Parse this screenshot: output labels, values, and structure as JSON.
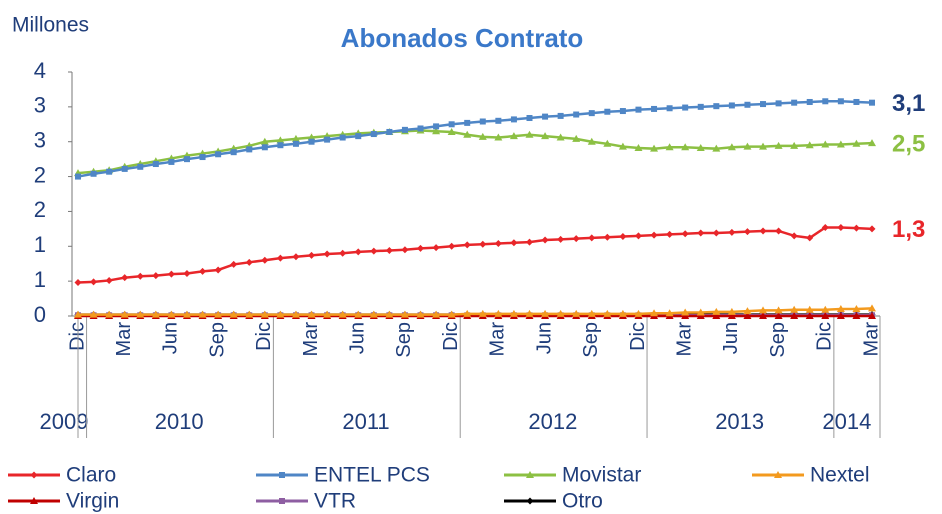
{
  "chart_data": {
    "type": "line",
    "title": "Abonados Contrato",
    "y_axis_label": "Millones",
    "categories": [
      "Dic",
      null,
      null,
      "Mar",
      null,
      null,
      "Jun",
      null,
      null,
      "Sep",
      null,
      null,
      "Dic",
      null,
      null,
      "Mar",
      null,
      null,
      "Jun",
      null,
      null,
      "Sep",
      null,
      null,
      "Dic",
      null,
      null,
      "Mar",
      null,
      null,
      "Jun",
      null,
      null,
      "Sep",
      null,
      null,
      "Dic",
      null,
      null,
      "Mar",
      null,
      null,
      "Jun",
      null,
      null,
      "Sep",
      null,
      null,
      "Dic",
      null,
      null,
      "Mar"
    ],
    "years": [
      "2009",
      "2010",
      "2011",
      "2012",
      "2013",
      "2014"
    ],
    "ylim": [
      0,
      3.5
    ],
    "yticks": [
      0,
      {
        "value": 0.5,
        "label": "1"
      },
      1,
      {
        "value": 1.5,
        "label": "2"
      },
      2,
      {
        "value": 2.5,
        "label": "3"
      },
      3,
      {
        "value": 3.5,
        "label": "4"
      }
    ],
    "series": [
      {
        "name": "Claro",
        "color": "#e8262a",
        "marker": "diamond",
        "end_label": "1,3",
        "values": [
          0.48,
          0.49,
          0.51,
          0.55,
          0.57,
          0.58,
          0.6,
          0.61,
          0.64,
          0.66,
          0.74,
          0.77,
          0.8,
          0.83,
          0.85,
          0.87,
          0.89,
          0.9,
          0.92,
          0.93,
          0.94,
          0.95,
          0.97,
          0.98,
          1.0,
          1.02,
          1.03,
          1.04,
          1.05,
          1.06,
          1.09,
          1.1,
          1.11,
          1.12,
          1.13,
          1.14,
          1.15,
          1.16,
          1.17,
          1.18,
          1.19,
          1.19,
          1.2,
          1.21,
          1.22,
          1.22,
          1.15,
          1.12,
          1.27,
          1.27,
          1.26,
          1.25
        ]
      },
      {
        "name": "ENTEL PCS",
        "color": "#4f86c6",
        "marker": "square",
        "end_label": "3,1",
        "values": [
          2.0,
          2.04,
          2.07,
          2.11,
          2.14,
          2.18,
          2.21,
          2.25,
          2.28,
          2.32,
          2.35,
          2.39,
          2.42,
          2.45,
          2.47,
          2.5,
          2.53,
          2.56,
          2.58,
          2.61,
          2.64,
          2.67,
          2.69,
          2.72,
          2.75,
          2.77,
          2.79,
          2.8,
          2.82,
          2.84,
          2.86,
          2.87,
          2.89,
          2.91,
          2.93,
          2.94,
          2.96,
          2.97,
          2.98,
          2.99,
          3.0,
          3.01,
          3.02,
          3.03,
          3.04,
          3.05,
          3.06,
          3.07,
          3.08,
          3.08,
          3.07,
          3.06
        ]
      },
      {
        "name": "Movistar",
        "color": "#8cc043",
        "marker": "triangle",
        "end_label": "2,5",
        "values": [
          2.05,
          2.07,
          2.09,
          2.14,
          2.18,
          2.22,
          2.26,
          2.3,
          2.33,
          2.36,
          2.4,
          2.44,
          2.5,
          2.52,
          2.54,
          2.56,
          2.58,
          2.6,
          2.62,
          2.63,
          2.64,
          2.65,
          2.66,
          2.65,
          2.64,
          2.6,
          2.57,
          2.56,
          2.58,
          2.6,
          2.58,
          2.56,
          2.54,
          2.5,
          2.47,
          2.43,
          2.41,
          2.4,
          2.42,
          2.42,
          2.41,
          2.4,
          2.42,
          2.43,
          2.43,
          2.44,
          2.44,
          2.45,
          2.46,
          2.46,
          2.47,
          2.48
        ]
      },
      {
        "name": "Nextel",
        "color": "#f39a1e",
        "marker": "triangle",
        "values": [
          0.02,
          0.02,
          0.02,
          0.02,
          0.02,
          0.02,
          0.02,
          0.02,
          0.02,
          0.02,
          0.02,
          0.02,
          0.02,
          0.02,
          0.02,
          0.02,
          0.02,
          0.02,
          0.02,
          0.02,
          0.02,
          0.02,
          0.02,
          0.02,
          0.02,
          0.03,
          0.03,
          0.03,
          0.03,
          0.03,
          0.03,
          0.03,
          0.03,
          0.03,
          0.03,
          0.03,
          0.03,
          0.04,
          0.04,
          0.05,
          0.05,
          0.06,
          0.06,
          0.07,
          0.08,
          0.08,
          0.09,
          0.09,
          0.09,
          0.1,
          0.1,
          0.11
        ]
      },
      {
        "name": "Virgin",
        "color": "#c00000",
        "marker": "triangle",
        "values": [
          0,
          0,
          0,
          0,
          0,
          0,
          0,
          0,
          0,
          0,
          0,
          0,
          0,
          0,
          0,
          0,
          0,
          0,
          0,
          0,
          0,
          0,
          0,
          0,
          0,
          0,
          0,
          0,
          0,
          0,
          0,
          0,
          0,
          0,
          0,
          0,
          0,
          0,
          0,
          0,
          0,
          0,
          0,
          0,
          0,
          0,
          0,
          0,
          0,
          0,
          0,
          0
        ]
      },
      {
        "name": "VTR",
        "color": "#8e5ea2",
        "marker": "square",
        "values": [
          0.01,
          0.01,
          0.01,
          0.01,
          0.01,
          0.01,
          0.01,
          0.01,
          0.01,
          0.01,
          0.01,
          0.01,
          0.01,
          0.01,
          0.01,
          0.01,
          0.01,
          0.01,
          0.01,
          0.01,
          0.01,
          0.01,
          0.01,
          0.01,
          0.01,
          0.01,
          0.01,
          0.01,
          0.01,
          0.01,
          0.01,
          0.01,
          0.01,
          0.01,
          0.01,
          0.01,
          0.01,
          0.01,
          0.01,
          0.01,
          0.01,
          0.01,
          0.01,
          0.01,
          0.01,
          0.01,
          0.01,
          0.01,
          0.01,
          0.01,
          0.01,
          0.01
        ]
      },
      {
        "name": "Otro",
        "color": "#000000",
        "marker": "diamond",
        "values": [
          0.02,
          0.02,
          0.02,
          0.02,
          0.02,
          0.02,
          0.02,
          0.02,
          0.02,
          0.02,
          0.02,
          0.02,
          0.02,
          0.02,
          0.02,
          0.02,
          0.02,
          0.02,
          0.02,
          0.02,
          0.02,
          0.02,
          0.02,
          0.02,
          0.02,
          0.02,
          0.02,
          0.02,
          0.02,
          0.02,
          0.02,
          0.02,
          0.02,
          0.02,
          0.02,
          0.02,
          0.02,
          0.02,
          0.02,
          0.02,
          0.02,
          0.02,
          0.02,
          0.02,
          0.02,
          0.02,
          0.02,
          0.02,
          0.02,
          0.02,
          0.02,
          0.02
        ]
      }
    ]
  }
}
